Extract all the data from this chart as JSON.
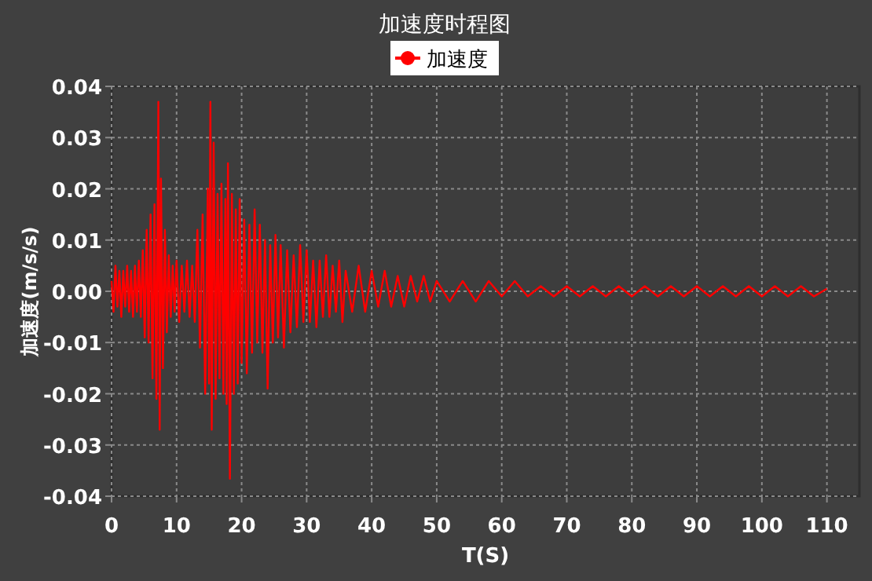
{
  "chart_data": {
    "type": "line",
    "title": "加速度时程图",
    "xlabel": "T(S)",
    "ylabel": "加速度(m/s/s)",
    "legend": "top",
    "grid": true,
    "line_style": "solid",
    "xlim": [
      0,
      115
    ],
    "xticks": [
      0,
      10,
      20,
      30,
      40,
      50,
      60,
      70,
      80,
      90,
      100,
      110
    ],
    "ylim": [
      -0.04,
      0.04
    ],
    "yticks": [
      {
        "value": -0.04,
        "label": "-0.04"
      },
      {
        "value": -0.03,
        "label": "-0.03"
      },
      {
        "value": -0.02,
        "label": "-0.02"
      },
      {
        "value": -0.01,
        "label": "-0.01"
      },
      {
        "value": 0,
        "label": "0.00"
      },
      {
        "value": 0.01,
        "label": "0.01"
      },
      {
        "value": 0.02,
        "label": "0.02"
      },
      {
        "value": 0.03,
        "label": "0.03"
      },
      {
        "value": 0.04,
        "label": "0.04"
      }
    ],
    "x": [
      0,
      0.3,
      0.6,
      0.9,
      1.2,
      1.5,
      1.8,
      2.1,
      2.4,
      2.7,
      3.0,
      3.3,
      3.6,
      3.9,
      4.2,
      4.5,
      4.8,
      5.1,
      5.4,
      5.7,
      6.0,
      6.3,
      6.6,
      6.9,
      7.2,
      7.4,
      7.6,
      7.9,
      8.2,
      8.5,
      8.8,
      9.1,
      9.4,
      9.7,
      10.0,
      10.4,
      10.8,
      11.2,
      11.6,
      12.0,
      12.4,
      12.8,
      13.2,
      13.6,
      14.0,
      14.4,
      14.8,
      15.0,
      15.2,
      15.4,
      15.7,
      16.0,
      16.3,
      16.6,
      16.9,
      17.2,
      17.5,
      17.7,
      17.9,
      18.2,
      18.5,
      18.8,
      19.1,
      19.4,
      19.7,
      20.0,
      20.4,
      20.8,
      21.2,
      21.6,
      22.0,
      22.4,
      22.8,
      23.2,
      23.6,
      24.0,
      24.4,
      24.8,
      25.2,
      25.6,
      26.0,
      26.5,
      27.0,
      27.5,
      28.0,
      28.5,
      29.0,
      29.5,
      30.0,
      30.5,
      31.0,
      31.5,
      32.0,
      32.5,
      33.0,
      33.5,
      34.0,
      34.5,
      35.0,
      35.5,
      36,
      37,
      38,
      39,
      40,
      41,
      42,
      43,
      44,
      45,
      46,
      47,
      48,
      49,
      50,
      52,
      54,
      56,
      58,
      60,
      62,
      64,
      66,
      68,
      70,
      72,
      74,
      76,
      78,
      80,
      82,
      84,
      86,
      88,
      90,
      92,
      94,
      96,
      98,
      100,
      102,
      104,
      106,
      108,
      110
    ],
    "series": [
      {
        "name": "加速度",
        "color": "#ff0000",
        "values": [
          0.002,
          -0.004,
          0.005,
          -0.003,
          0.004,
          -0.005,
          0.004,
          -0.003,
          0.005,
          -0.004,
          0.004,
          -0.005,
          0.005,
          -0.004,
          0.006,
          -0.005,
          0.008,
          -0.009,
          0.012,
          -0.01,
          0.015,
          -0.017,
          0.017,
          -0.021,
          0.037,
          -0.027,
          0.022,
          -0.015,
          0.012,
          -0.008,
          0.007,
          -0.005,
          0.005,
          -0.004,
          0.006,
          -0.006,
          0.005,
          -0.004,
          0.006,
          -0.005,
          0.005,
          -0.006,
          0.012,
          -0.011,
          0.015,
          -0.02,
          0.02,
          -0.018,
          0.037,
          -0.027,
          0.029,
          -0.021,
          0.019,
          -0.017,
          0.021,
          -0.02,
          0.018,
          -0.022,
          0.025,
          -0.0366,
          0.019,
          -0.02,
          0.016,
          -0.018,
          0.018,
          -0.014,
          0.014,
          -0.016,
          0.013,
          -0.012,
          0.016,
          -0.01,
          0.013,
          -0.012,
          0.01,
          -0.019,
          0.009,
          -0.01,
          0.011,
          -0.009,
          0.009,
          -0.011,
          0.008,
          -0.008,
          0.007,
          -0.007,
          0.009,
          -0.006,
          0.008,
          -0.006,
          0.006,
          -0.007,
          0.006,
          -0.005,
          0.007,
          -0.005,
          0.005,
          -0.004,
          0.006,
          -0.006,
          0.004,
          -0.004,
          0.005,
          -0.004,
          0.004,
          -0.003,
          0.004,
          -0.003,
          0.003,
          -0.003,
          0.003,
          -0.002,
          0.003,
          -0.002,
          0.002,
          -0.002,
          0.002,
          -0.002,
          0.002,
          -0.001,
          0.002,
          -0.001,
          0.001,
          -0.001,
          0.001,
          -0.001,
          0.001,
          -0.001,
          0.001,
          -0.001,
          0.001,
          -0.001,
          0.001,
          -0.001,
          0.001,
          -0.001,
          0.001,
          -0.001,
          0.001,
          -0.001,
          0.001,
          -0.001,
          0.001,
          -0.001,
          0.0005
        ]
      }
    ]
  }
}
